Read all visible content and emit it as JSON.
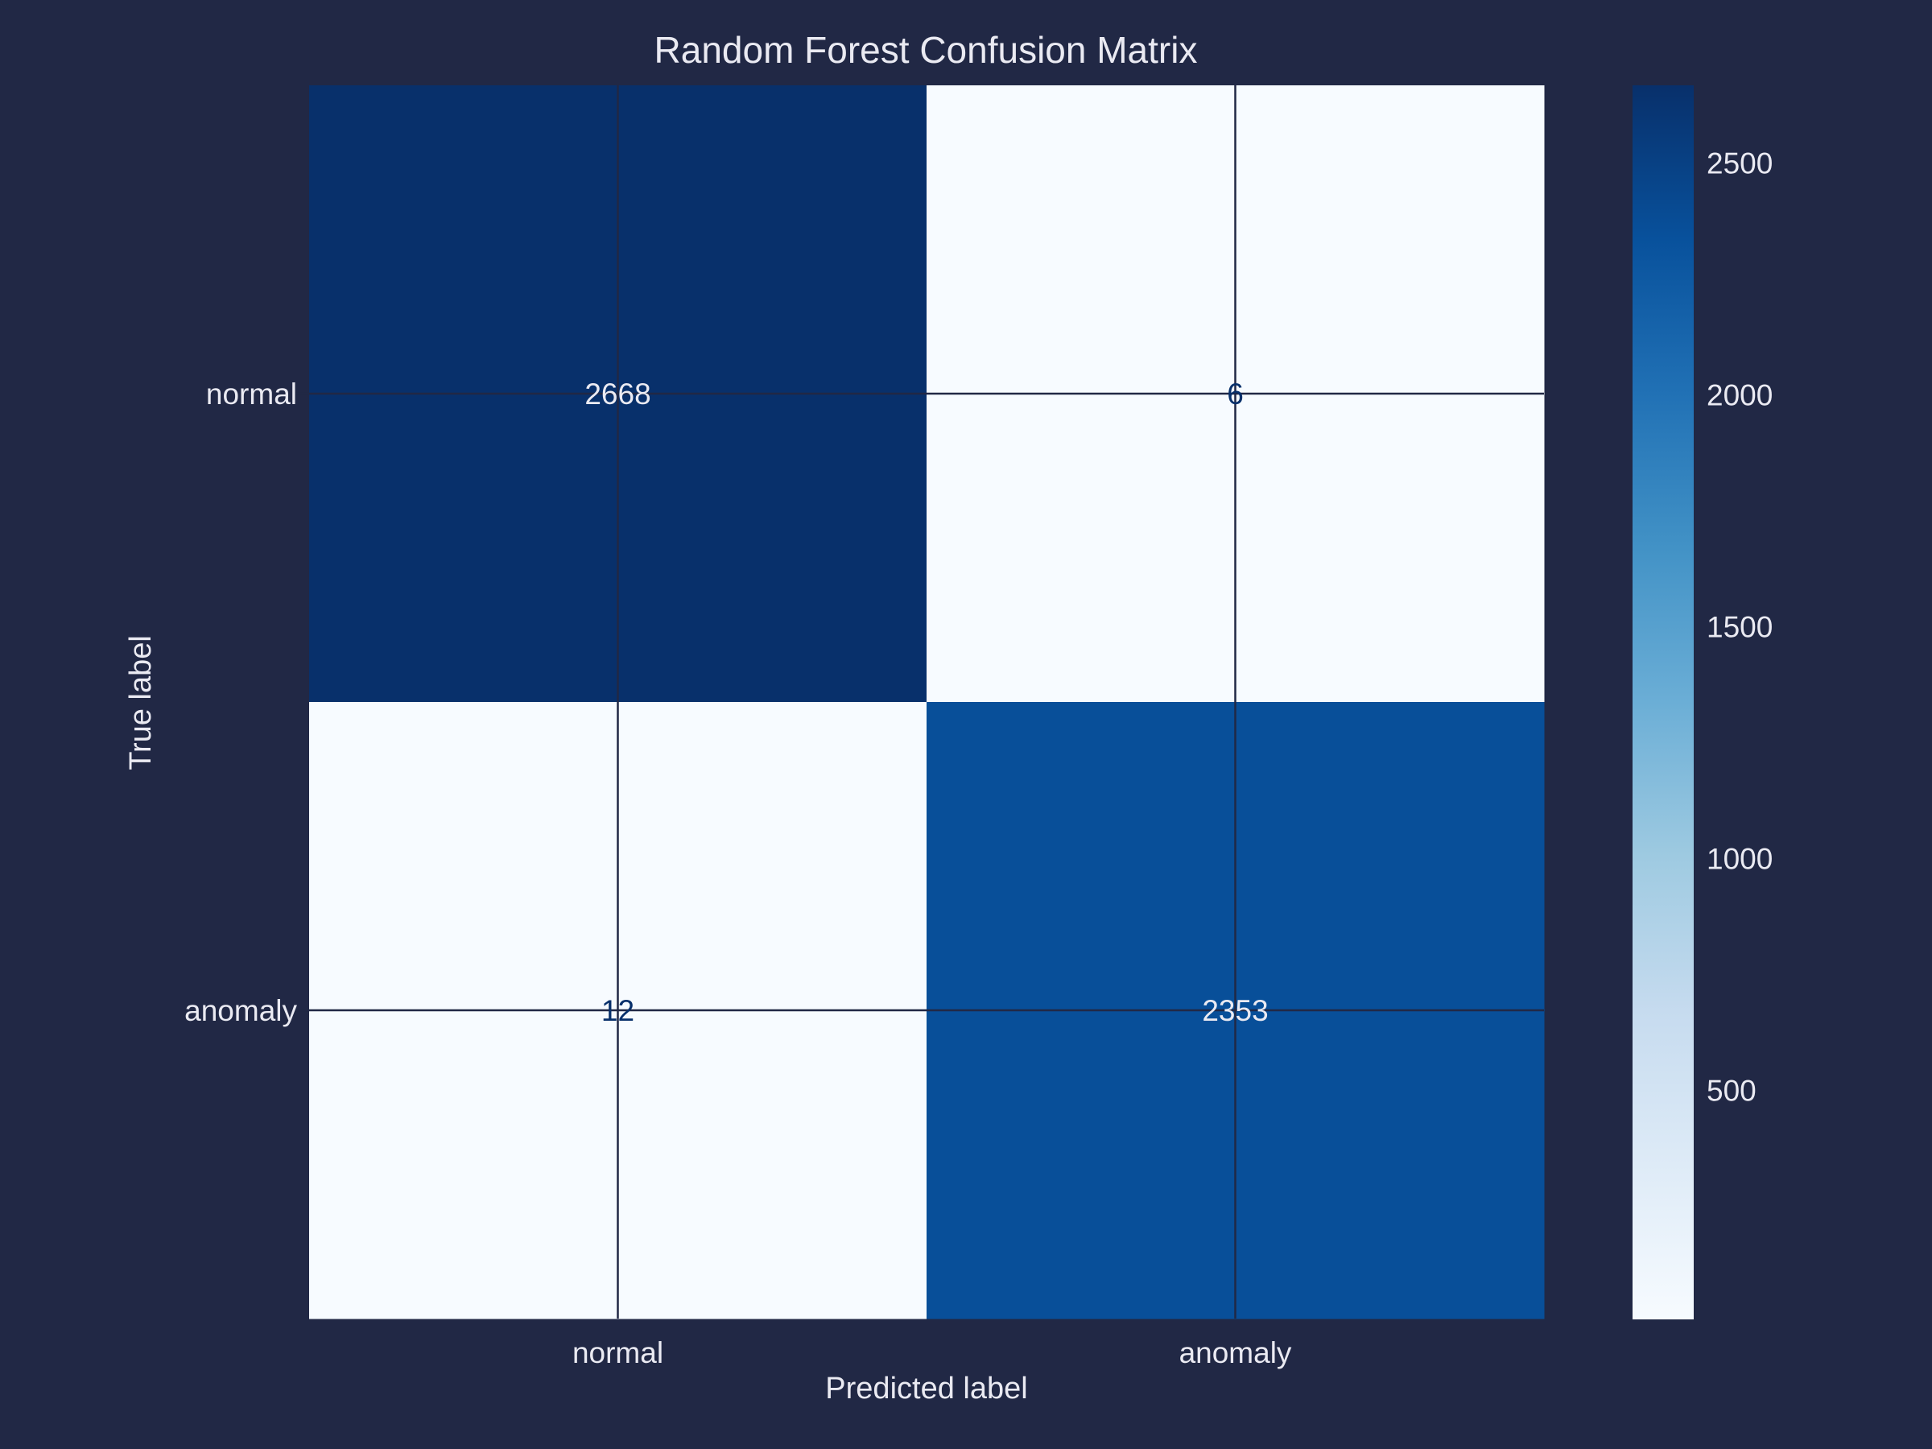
{
  "chart_data": {
    "type": "heatmap",
    "title": "Random Forest Confusion Matrix",
    "xlabel": "Predicted label",
    "ylabel": "True label",
    "x_categories": [
      "normal",
      "anomaly"
    ],
    "y_categories": [
      "normal",
      "anomaly"
    ],
    "values": [
      [
        2668,
        6
      ],
      [
        12,
        2353
      ]
    ],
    "cell_labels": [
      [
        "2668",
        "6"
      ],
      [
        "12",
        "2353"
      ]
    ],
    "colormap": "Blues",
    "color_range": [
      6,
      2668
    ],
    "colorbar_ticks": [
      500,
      1000,
      1500,
      2000,
      2500
    ],
    "colorbar_tick_labels": [
      "500",
      "1000",
      "1500",
      "2000",
      "2500"
    ],
    "grid": true,
    "colors": {
      "background": "#212845",
      "text": "#eaeaf2",
      "grid": "#212845",
      "dark_text": "#08306b"
    }
  }
}
